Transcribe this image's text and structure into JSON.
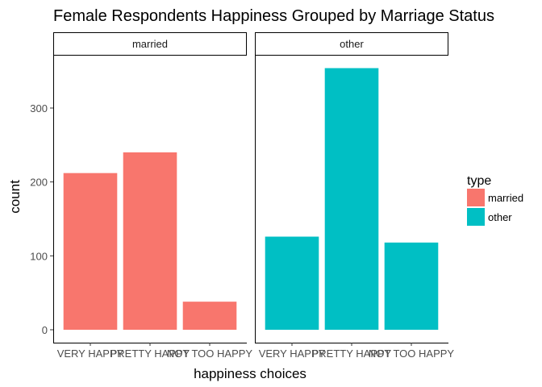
{
  "chart_data": {
    "type": "bar",
    "title": "Female Respondents Happiness Grouped by Marriage Status",
    "xlabel": "happiness choices",
    "ylabel": "count",
    "categories": [
      "VERY HAPPY",
      "PRETTY HAPPY",
      "NOT TOO HAPPY"
    ],
    "ylim": [
      0,
      370
    ],
    "yticks": [
      0,
      100,
      200,
      300
    ],
    "facets": [
      {
        "label": "married",
        "series": "married",
        "values": [
          212,
          240,
          38
        ]
      },
      {
        "label": "other",
        "series": "other",
        "values": [
          126,
          354,
          118
        ]
      }
    ],
    "legend": {
      "title": "type",
      "position": "right",
      "entries": [
        {
          "name": "married",
          "color": "#F8766D"
        },
        {
          "name": "other",
          "color": "#00BFC4"
        }
      ]
    },
    "grid": false
  }
}
